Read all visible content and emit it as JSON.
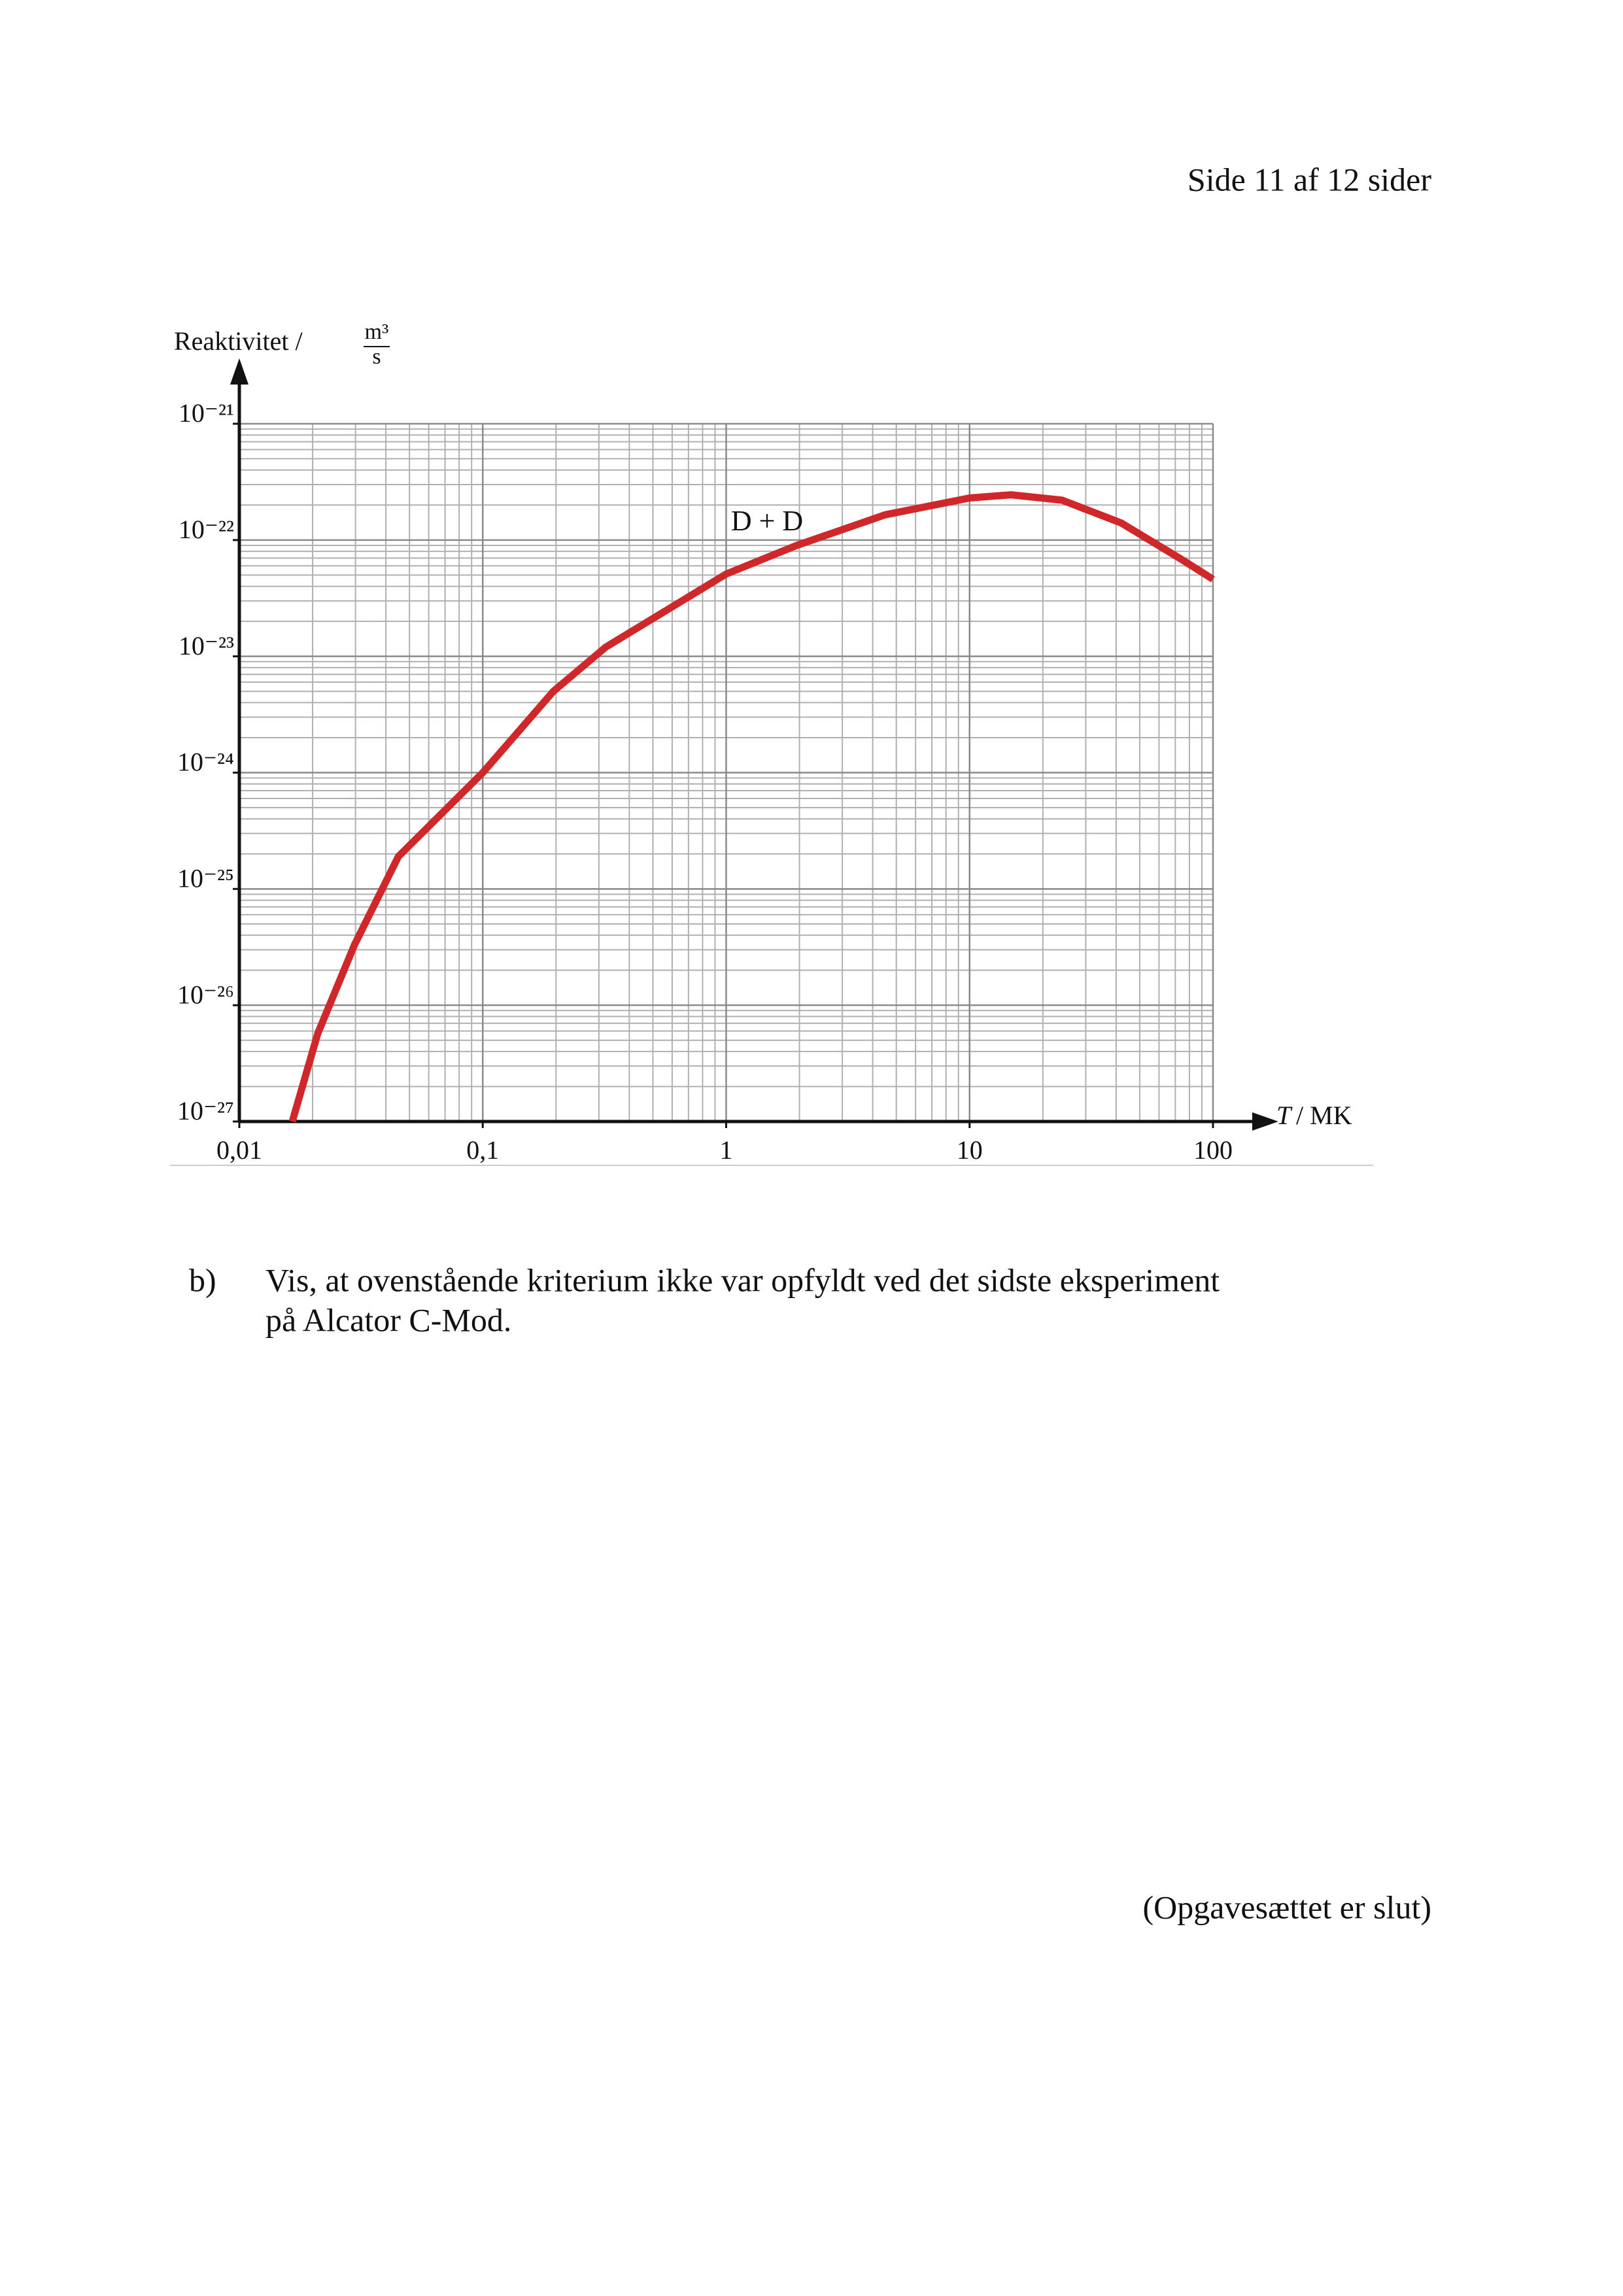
{
  "page_header": "Side 11 af 12 sider",
  "chart_data": {
    "type": "line",
    "y_label": "Reaktivitet /",
    "y_unit_numerator": "m³",
    "y_unit_denominator": "s",
    "x_label_symbol": "T",
    "x_label_unit": "/ MK",
    "xscale": "log",
    "yscale": "log",
    "grid": true,
    "minor_grid": true,
    "xlim": [
      0.01,
      100
    ],
    "xticks": [
      {
        "value": 0.01,
        "label": "0,01"
      },
      {
        "value": 0.1,
        "label": "0,1"
      },
      1,
      10,
      100
    ],
    "ylim": [
      1e-27,
      1e-21
    ],
    "yticks": [
      {
        "value": 1e-27,
        "label": "10⁻²⁷"
      },
      {
        "value": 1e-26,
        "label": "10⁻²⁶"
      },
      {
        "value": 1e-25,
        "label": "10⁻²⁵"
      },
      {
        "value": 1e-24,
        "label": "10⁻²⁴"
      },
      {
        "value": 1e-23,
        "label": "10⁻²³"
      },
      {
        "value": 1e-22,
        "label": "10⁻²²"
      },
      {
        "value": 1e-21,
        "label": "10⁻²¹"
      }
    ],
    "x": [
      0.0165,
      0.021,
      0.0297,
      0.045,
      0.1,
      0.195,
      0.32,
      1,
      1.95,
      4.5,
      10,
      14.8,
      24,
      42,
      73.6,
      100
    ],
    "series": [
      {
        "name": "D + D",
        "color": "#d0282a",
        "values": [
          1e-27,
          5.7e-27,
          3.3e-26,
          1.9e-25,
          1e-24,
          5e-24,
          1.2e-23,
          5.1e-23,
          9e-23,
          1.65e-22,
          2.3e-22,
          2.45e-22,
          2.2e-22,
          1.4e-22,
          6.9e-23,
          4.6e-23
        ]
      }
    ]
  },
  "question": {
    "label": "b)",
    "lines": [
      "Vis, at ovenstående kriterium ikke var opfyldt ved det sidste eksperiment",
      "på Alcator C-Mod."
    ]
  },
  "footer": "(Opgavesættet er slut)"
}
